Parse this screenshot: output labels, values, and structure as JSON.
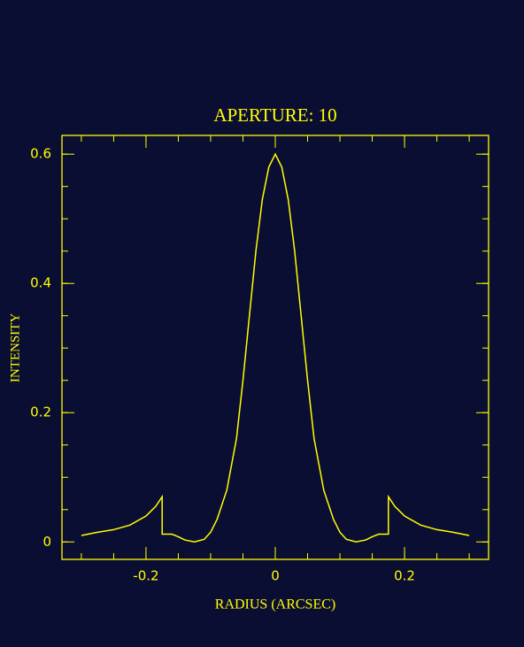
{
  "chart_data": {
    "type": "line",
    "title": "APERTURE: 10",
    "x_label": "RADIUS (ARCSEC)",
    "y_label": "INTENSITY",
    "x": [
      -0.3,
      -0.275,
      -0.25,
      -0.225,
      -0.2,
      -0.185,
      -0.175,
      -0.175,
      -0.16,
      -0.15,
      -0.14,
      -0.125,
      -0.11,
      -0.1,
      -0.09,
      -0.075,
      -0.06,
      -0.05,
      -0.04,
      -0.03,
      -0.02,
      -0.01,
      0,
      0.01,
      0.02,
      0.03,
      0.04,
      0.05,
      0.06,
      0.075,
      0.09,
      0.1,
      0.11,
      0.125,
      0.14,
      0.15,
      0.16,
      0.175,
      0.175,
      0.185,
      0.2,
      0.225,
      0.25,
      0.275,
      0.3
    ],
    "series": [
      {
        "color": "#ffff00",
        "values": [
          0.01,
          0.015,
          0.019,
          0.026,
          0.04,
          0.055,
          0.07,
          0.012,
          0.012,
          0.008,
          0.003,
          0.0,
          0.004,
          0.015,
          0.035,
          0.08,
          0.16,
          0.25,
          0.35,
          0.45,
          0.53,
          0.58,
          0.6,
          0.58,
          0.53,
          0.45,
          0.35,
          0.25,
          0.16,
          0.08,
          0.035,
          0.015,
          0.004,
          0.0,
          0.003,
          0.008,
          0.012,
          0.012,
          0.07,
          0.055,
          0.04,
          0.026,
          0.019,
          0.015,
          0.01
        ]
      }
    ],
    "xlim": [
      -0.33,
      0.33
    ],
    "ylim": [
      -0.027,
      0.629
    ],
    "xticks": [
      -0.2,
      0,
      0.2
    ],
    "yticks": [
      0,
      0.2,
      0.4,
      0.6
    ],
    "axis_color": "#ffff00"
  }
}
